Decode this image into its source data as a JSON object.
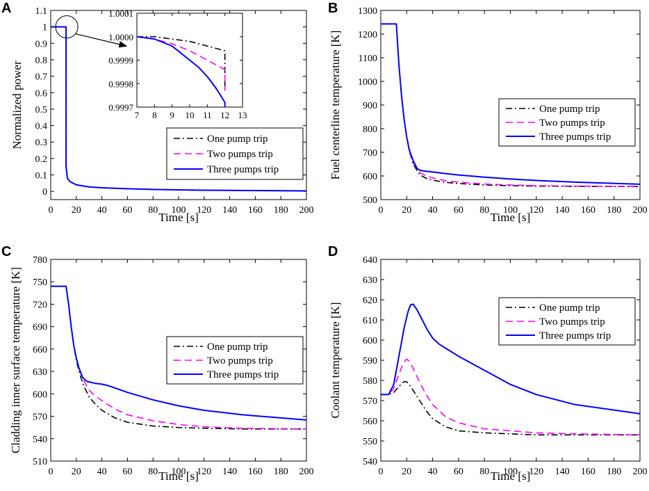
{
  "chart_data": [
    {
      "panel": "A",
      "type": "line",
      "xlabel": "Time [s]",
      "ylabel": "Normalized power",
      "xlim": [
        0,
        200
      ],
      "ylim": [
        -0.05,
        1.1
      ],
      "xticks": [
        0,
        20,
        40,
        60,
        80,
        100,
        120,
        140,
        160,
        180,
        200
      ],
      "yticks": [
        0,
        0.1,
        0.2,
        0.3,
        0.4,
        0.5,
        0.6,
        0.7,
        0.8,
        0.9,
        1,
        1.1
      ],
      "ytick_labels": [
        "0",
        "0.1",
        "0.2",
        "0.3",
        "0.4",
        "0.5",
        "0.6",
        "0.7",
        "0.8",
        "0.9",
        "1",
        "1.1"
      ],
      "legend": [
        "One pump trip",
        "Two pumps trip",
        "Three pumps trip"
      ],
      "series": [
        {
          "name": "One pump trip",
          "x": [
            0,
            12,
            12,
            13,
            15,
            20,
            30,
            40,
            60,
            80,
            100,
            120,
            140,
            160,
            180,
            200
          ],
          "y": [
            1,
            1,
            0.15,
            0.08,
            0.06,
            0.04,
            0.027,
            0.022,
            0.016,
            0.012,
            0.009,
            0.007,
            0.006,
            0.005,
            0.004,
            0.003
          ]
        },
        {
          "name": "Two pumps trip",
          "x": [
            0,
            12,
            12,
            13,
            15,
            20,
            30,
            40,
            60,
            80,
            100,
            120,
            140,
            160,
            180,
            200
          ],
          "y": [
            1,
            1,
            0.15,
            0.08,
            0.06,
            0.04,
            0.027,
            0.022,
            0.016,
            0.012,
            0.009,
            0.007,
            0.006,
            0.005,
            0.004,
            0.003
          ]
        },
        {
          "name": "Three pumps trip",
          "x": [
            0,
            12,
            12,
            13,
            15,
            20,
            30,
            40,
            60,
            80,
            100,
            120,
            140,
            160,
            180,
            200
          ],
          "y": [
            1,
            1,
            0.15,
            0.08,
            0.06,
            0.04,
            0.027,
            0.022,
            0.016,
            0.012,
            0.009,
            0.007,
            0.006,
            0.005,
            0.004,
            0.003
          ]
        }
      ],
      "inset": {
        "xlim": [
          7,
          13
        ],
        "ylim": [
          0.9997,
          1.0001
        ],
        "xticks": [
          7,
          8,
          9,
          10,
          11,
          12,
          13
        ],
        "yticks": [
          0.9997,
          0.9998,
          0.9999,
          1.0,
          1.0001
        ],
        "ytick_labels": [
          "0.9997",
          "0.9998",
          "0.9999",
          "1.0000",
          "1.0001"
        ],
        "series": [
          {
            "name": "One pump trip",
            "x": [
              7,
              8,
              9,
              10,
              11,
              11.5,
              12,
              12
            ],
            "y": [
              1.0,
              1.0,
              0.99999,
              0.99998,
              0.99996,
              0.99995,
              0.99994,
              0.99977
            ]
          },
          {
            "name": "Two pumps trip",
            "x": [
              7,
              8,
              9,
              10,
              11,
              11.5,
              12,
              12
            ],
            "y": [
              1.0,
              0.99999,
              0.99997,
              0.99994,
              0.9999,
              0.99988,
              0.99986,
              0.99977
            ]
          },
          {
            "name": "Three pumps trip",
            "x": [
              7,
              8,
              9,
              10,
              10.5,
              11,
              11.5,
              12,
              12
            ],
            "y": [
              1.0,
              0.99999,
              0.99996,
              0.9999,
              0.99987,
              0.99983,
              0.99978,
              0.99972,
              0.99968
            ]
          }
        ]
      }
    },
    {
      "panel": "B",
      "type": "line",
      "xlabel": "Time [s]",
      "ylabel": "Fuel centerline temperature [K]",
      "xlim": [
        0,
        200
      ],
      "ylim": [
        500,
        1300
      ],
      "xticks": [
        0,
        20,
        40,
        60,
        80,
        100,
        120,
        140,
        160,
        180,
        200
      ],
      "yticks": [
        500,
        600,
        700,
        800,
        900,
        1000,
        1100,
        1200,
        1300
      ],
      "legend": [
        "One pump trip",
        "Two pumps trip",
        "Three pumps trip"
      ],
      "series": [
        {
          "name": "One pump trip",
          "x": [
            0,
            12,
            14,
            16,
            18,
            20,
            22,
            25,
            30,
            35,
            40,
            50,
            60,
            80,
            100,
            120,
            150,
            200
          ],
          "y": [
            1243,
            1243,
            1070,
            940,
            840,
            765,
            705,
            650,
            605,
            590,
            582,
            573,
            568,
            562,
            559,
            557,
            556,
            555
          ]
        },
        {
          "name": "Two pumps trip",
          "x": [
            0,
            12,
            14,
            16,
            18,
            20,
            22,
            25,
            30,
            35,
            40,
            50,
            60,
            80,
            100,
            120,
            150,
            200
          ],
          "y": [
            1243,
            1243,
            1070,
            940,
            840,
            765,
            705,
            655,
            615,
            600,
            592,
            580,
            574,
            566,
            562,
            559,
            557,
            556
          ]
        },
        {
          "name": "Three pumps trip",
          "x": [
            0,
            12,
            14,
            16,
            18,
            20,
            22,
            25,
            28,
            30,
            35,
            40,
            50,
            60,
            80,
            100,
            120,
            150,
            200
          ],
          "y": [
            1243,
            1243,
            1070,
            940,
            840,
            765,
            710,
            665,
            632,
            624,
            620,
            617,
            610,
            604,
            595,
            587,
            581,
            574,
            565
          ]
        }
      ]
    },
    {
      "panel": "C",
      "type": "line",
      "xlabel": "Time [s]",
      "ylabel": "Cladding inner surface temperature [K]",
      "xlim": [
        0,
        200
      ],
      "ylim": [
        510,
        780
      ],
      "xticks": [
        0,
        20,
        40,
        60,
        80,
        100,
        120,
        140,
        160,
        180,
        200
      ],
      "yticks": [
        510,
        540,
        570,
        600,
        630,
        660,
        690,
        720,
        750,
        780
      ],
      "legend": [
        "One pump trip",
        "Two pumps trip",
        "Three pumps trip"
      ],
      "series": [
        {
          "name": "One pump trip",
          "x": [
            0,
            12,
            14,
            16,
            18,
            20,
            23,
            26,
            30,
            35,
            40,
            50,
            60,
            80,
            100,
            120,
            150,
            200
          ],
          "y": [
            744,
            744,
            720,
            690,
            665,
            645,
            625,
            610,
            596,
            586,
            578,
            568,
            562,
            557,
            555,
            554,
            553,
            553
          ]
        },
        {
          "name": "Two pumps trip",
          "x": [
            0,
            12,
            14,
            16,
            18,
            20,
            23,
            26,
            30,
            35,
            40,
            50,
            60,
            80,
            100,
            120,
            150,
            200
          ],
          "y": [
            744,
            744,
            720,
            690,
            665,
            648,
            630,
            617,
            605,
            597,
            591,
            580,
            572,
            564,
            559,
            556,
            554,
            553
          ]
        },
        {
          "name": "Three pumps trip",
          "x": [
            0,
            12,
            14,
            16,
            18,
            20,
            22,
            25,
            28,
            30,
            35,
            40,
            45,
            50,
            60,
            80,
            100,
            120,
            150,
            200
          ],
          "y": [
            744,
            744,
            720,
            690,
            665,
            648,
            635,
            622,
            617,
            616,
            614,
            613,
            611,
            608,
            602,
            592,
            584,
            578,
            572,
            565
          ]
        }
      ]
    },
    {
      "panel": "D",
      "type": "line",
      "xlabel": "Time [s]",
      "ylabel": "Coolant temperature [K]",
      "xlim": [
        0,
        200
      ],
      "ylim": [
        540,
        640
      ],
      "xticks": [
        0,
        20,
        40,
        60,
        80,
        100,
        120,
        140,
        160,
        180,
        200
      ],
      "yticks": [
        540,
        550,
        560,
        570,
        580,
        590,
        600,
        610,
        620,
        630,
        640
      ],
      "legend": [
        "One pump trip",
        "Two pumps trip",
        "Three pumps trip"
      ],
      "series": [
        {
          "name": "One pump trip",
          "x": [
            0,
            6,
            10,
            14,
            17,
            19,
            20,
            22,
            25,
            30,
            35,
            40,
            50,
            60,
            80,
            100,
            120,
            150,
            200
          ],
          "y": [
            573,
            573,
            574,
            577,
            579,
            579.5,
            579.3,
            578,
            575,
            570,
            565,
            561,
            557,
            555,
            554,
            553.5,
            553,
            553,
            553
          ]
        },
        {
          "name": "Two pumps trip",
          "x": [
            0,
            6,
            10,
            14,
            17,
            19,
            20,
            22,
            25,
            30,
            35,
            40,
            50,
            60,
            80,
            100,
            120,
            150,
            200
          ],
          "y": [
            573,
            573,
            576,
            583,
            588,
            590,
            590.5,
            589.5,
            586,
            579,
            573,
            568,
            562,
            559,
            556,
            555,
            554,
            553.5,
            553
          ]
        },
        {
          "name": "Three pumps trip",
          "x": [
            0,
            6,
            10,
            14,
            18,
            21,
            23,
            25,
            28,
            32,
            36,
            40,
            45,
            50,
            60,
            80,
            100,
            120,
            150,
            200
          ],
          "y": [
            573,
            573,
            578,
            592,
            606,
            614,
            617.5,
            617.8,
            615,
            610,
            605,
            601,
            598,
            596,
            592,
            585,
            578,
            573,
            568,
            563.5
          ]
        }
      ]
    }
  ]
}
